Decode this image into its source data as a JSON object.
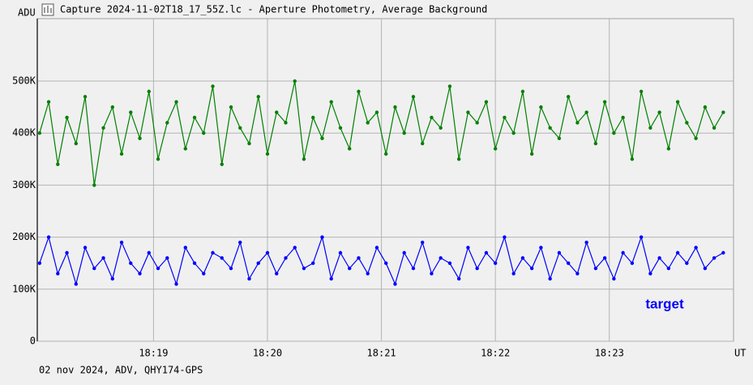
{
  "chart_data": {
    "type": "line",
    "title": "Capture 2024-11-02T18_17_55Z.lc - Aperture Photometry, Average Background",
    "caption": "02 nov 2024, ADV, QHY174-GPS",
    "y_label": "ADU",
    "x_label": "UT",
    "x": [
      1098,
      1098.08,
      1098.16,
      1098.24,
      1098.32,
      1098.4,
      1098.48,
      1098.56,
      1098.64,
      1098.72,
      1098.8,
      1098.88,
      1098.96,
      1099.04,
      1099.12,
      1099.2,
      1099.28,
      1099.36,
      1099.44,
      1099.52,
      1099.6,
      1099.68,
      1099.76,
      1099.84,
      1099.92,
      1100,
      1100.08,
      1100.16,
      1100.24,
      1100.32,
      1100.4,
      1100.48,
      1100.56,
      1100.64,
      1100.72,
      1100.8,
      1100.88,
      1100.96,
      1101.04,
      1101.12,
      1101.2,
      1101.28,
      1101.36,
      1101.44,
      1101.52,
      1101.6,
      1101.68,
      1101.76,
      1101.84,
      1101.92,
      1102,
      1102.08,
      1102.16,
      1102.24,
      1102.32,
      1102.4,
      1102.48,
      1102.56,
      1102.64,
      1102.72,
      1102.8,
      1102.88,
      1102.96,
      1103.04,
      1103.12,
      1103.2,
      1103.28,
      1103.36,
      1103.44,
      1103.52,
      1103.6,
      1103.68,
      1103.76,
      1103.84,
      1103.92,
      1104
    ],
    "series": [
      {
        "color": "#008000",
        "values": [
          400000,
          460000,
          340000,
          430000,
          380000,
          470000,
          300000,
          410000,
          450000,
          360000,
          440000,
          390000,
          480000,
          350000,
          420000,
          460000,
          370000,
          430000,
          400000,
          490000,
          340000,
          450000,
          410000,
          380000,
          470000,
          360000,
          440000,
          420000,
          500000,
          350000,
          430000,
          390000,
          460000,
          410000,
          370000,
          480000,
          420000,
          440000,
          360000,
          450000,
          400000,
          470000,
          380000,
          430000,
          410000,
          490000,
          350000,
          440000,
          420000,
          460000,
          370000,
          430000,
          400000,
          480000,
          360000,
          450000,
          410000,
          390000,
          470000,
          420000,
          440000,
          380000,
          460000,
          400000,
          430000,
          350000,
          480000,
          410000,
          440000,
          370000,
          460000,
          420000,
          390000,
          450000,
          410000,
          440000
        ]
      },
      {
        "name": "target",
        "color": "#0000ff",
        "values": [
          150000,
          200000,
          130000,
          170000,
          110000,
          180000,
          140000,
          160000,
          120000,
          190000,
          150000,
          130000,
          170000,
          140000,
          160000,
          110000,
          180000,
          150000,
          130000,
          170000,
          160000,
          140000,
          190000,
          120000,
          150000,
          170000,
          130000,
          160000,
          180000,
          140000,
          150000,
          200000,
          120000,
          170000,
          140000,
          160000,
          130000,
          180000,
          150000,
          110000,
          170000,
          140000,
          190000,
          130000,
          160000,
          150000,
          120000,
          180000,
          140000,
          170000,
          150000,
          200000,
          130000,
          160000,
          140000,
          180000,
          120000,
          170000,
          150000,
          130000,
          190000,
          140000,
          160000,
          120000,
          170000,
          150000,
          200000,
          130000,
          160000,
          140000,
          170000,
          150000,
          180000,
          140000,
          160000,
          170000
        ]
      }
    ],
    "xlim": [
      1097.98,
      1104.09
    ],
    "xticks": [
      {
        "value": 1099,
        "label": "18:19"
      },
      {
        "value": 1100,
        "label": "18:20"
      },
      {
        "value": 1101,
        "label": "18:21"
      },
      {
        "value": 1102,
        "label": "18:22"
      },
      {
        "value": 1103,
        "label": "18:23"
      }
    ],
    "ylim": [
      0,
      620000
    ],
    "yticks": [
      0,
      {
        "value": 100000,
        "label": "100K"
      },
      {
        "value": 200000,
        "label": "200K"
      },
      {
        "value": 300000,
        "label": "300K"
      },
      {
        "value": 400000,
        "label": "400K"
      },
      {
        "value": 500000,
        "label": "500K"
      }
    ],
    "grid": true
  }
}
